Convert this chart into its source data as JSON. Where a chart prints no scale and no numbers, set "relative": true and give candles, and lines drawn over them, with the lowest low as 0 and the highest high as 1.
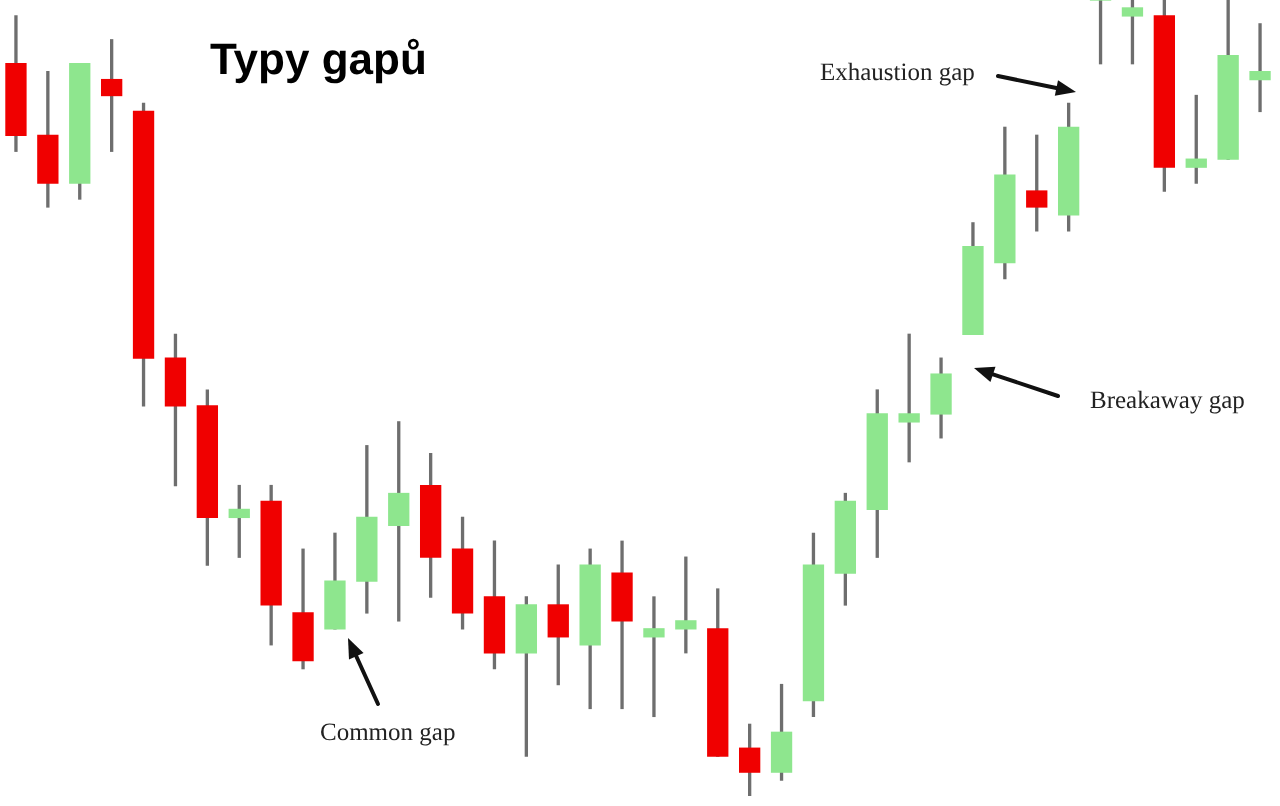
{
  "chart_data": {
    "type": "candlestick",
    "title": "Typy gapů",
    "relative": true,
    "categories": [
      null,
      null,
      null,
      null,
      null,
      null,
      null,
      null,
      null,
      null,
      null,
      null,
      null,
      null,
      null,
      null,
      null,
      null,
      null,
      null,
      null,
      null,
      null,
      null,
      null,
      null,
      null,
      null,
      null,
      null,
      null,
      null,
      null,
      null,
      null,
      null,
      null,
      null,
      null,
      null
    ],
    "ohlc": [
      [
        0.92,
        0.98,
        0.81,
        0.83
      ],
      [
        0.83,
        0.91,
        0.74,
        0.77
      ],
      [
        0.77,
        0.92,
        0.75,
        0.92
      ],
      [
        0.9,
        0.95,
        0.81,
        0.88
      ],
      [
        0.86,
        0.87,
        0.49,
        0.55
      ],
      [
        0.55,
        0.58,
        0.39,
        0.49
      ],
      [
        0.49,
        0.51,
        0.29,
        0.35
      ],
      [
        0.35,
        0.39,
        0.3,
        0.36
      ],
      [
        0.37,
        0.39,
        0.19,
        0.24
      ],
      [
        0.23,
        0.31,
        0.16,
        0.17
      ],
      [
        0.21,
        0.33,
        0.21,
        0.27
      ],
      [
        0.27,
        0.44,
        0.23,
        0.35
      ],
      [
        0.34,
        0.47,
        0.22,
        0.38
      ],
      [
        0.39,
        0.43,
        0.25,
        0.3
      ],
      [
        0.31,
        0.35,
        0.21,
        0.23
      ],
      [
        0.25,
        0.32,
        0.16,
        0.18
      ],
      [
        0.18,
        0.25,
        0.05,
        0.24
      ],
      [
        0.24,
        0.29,
        0.14,
        0.2
      ],
      [
        0.19,
        0.31,
        0.11,
        0.29
      ],
      [
        0.28,
        0.32,
        0.11,
        0.22
      ],
      [
        0.2,
        0.25,
        0.1,
        0.21
      ],
      [
        0.21,
        0.3,
        0.18,
        0.22
      ],
      [
        0.21,
        0.26,
        0.05,
        0.05
      ],
      [
        0.06,
        0.09,
        0,
        0.03
      ],
      [
        0.03,
        0.14,
        0.02,
        0.08
      ],
      [
        0.12,
        0.33,
        0.1,
        0.29
      ],
      [
        0.28,
        0.38,
        0.24,
        0.37
      ],
      [
        0.36,
        0.51,
        0.3,
        0.48
      ],
      [
        0.47,
        0.58,
        0.42,
        0.48
      ],
      [
        0.48,
        0.55,
        0.45,
        0.53
      ],
      [
        0.58,
        0.72,
        0.58,
        0.69
      ],
      [
        0.67,
        0.84,
        0.65,
        0.78
      ],
      [
        0.76,
        0.83,
        0.71,
        0.74
      ],
      [
        0.73,
        0.87,
        0.71,
        0.84
      ],
      [
        1,
        1,
        0.92,
        1
      ],
      [
        0.98,
        1,
        0.92,
        0.99
      ],
      [
        0.98,
        1,
        0.76,
        0.79
      ],
      [
        0.79,
        0.88,
        0.77,
        0.8
      ],
      [
        0.8,
        1,
        0.8,
        0.93
      ],
      [
        0.9,
        0.97,
        0.86,
        0.91
      ]
    ],
    "colors": [
      "#f00000",
      "#f00000",
      "#8ee68e",
      "#f00000",
      "#f00000",
      "#f00000",
      "#f00000",
      "#8ee68e",
      "#f00000",
      "#f00000",
      "#8ee68e",
      "#8ee68e",
      "#8ee68e",
      "#f00000",
      "#f00000",
      "#f00000",
      "#8ee68e",
      "#f00000",
      "#8ee68e",
      "#f00000",
      "#8ee68e",
      "#8ee68e",
      "#f00000",
      "#f00000",
      "#8ee68e",
      "#8ee68e",
      "#8ee68e",
      "#8ee68e",
      "#8ee68e",
      "#8ee68e",
      "#8ee68e",
      "#8ee68e",
      "#f00000",
      "#8ee68e",
      "#8ee68e",
      "#8ee68e",
      "#f00000",
      "#8ee68e",
      "#8ee68e",
      "#8ee68e"
    ],
    "annotations": [
      "Common gap",
      "Breakaway gap",
      "Exhaustion gap"
    ]
  }
}
